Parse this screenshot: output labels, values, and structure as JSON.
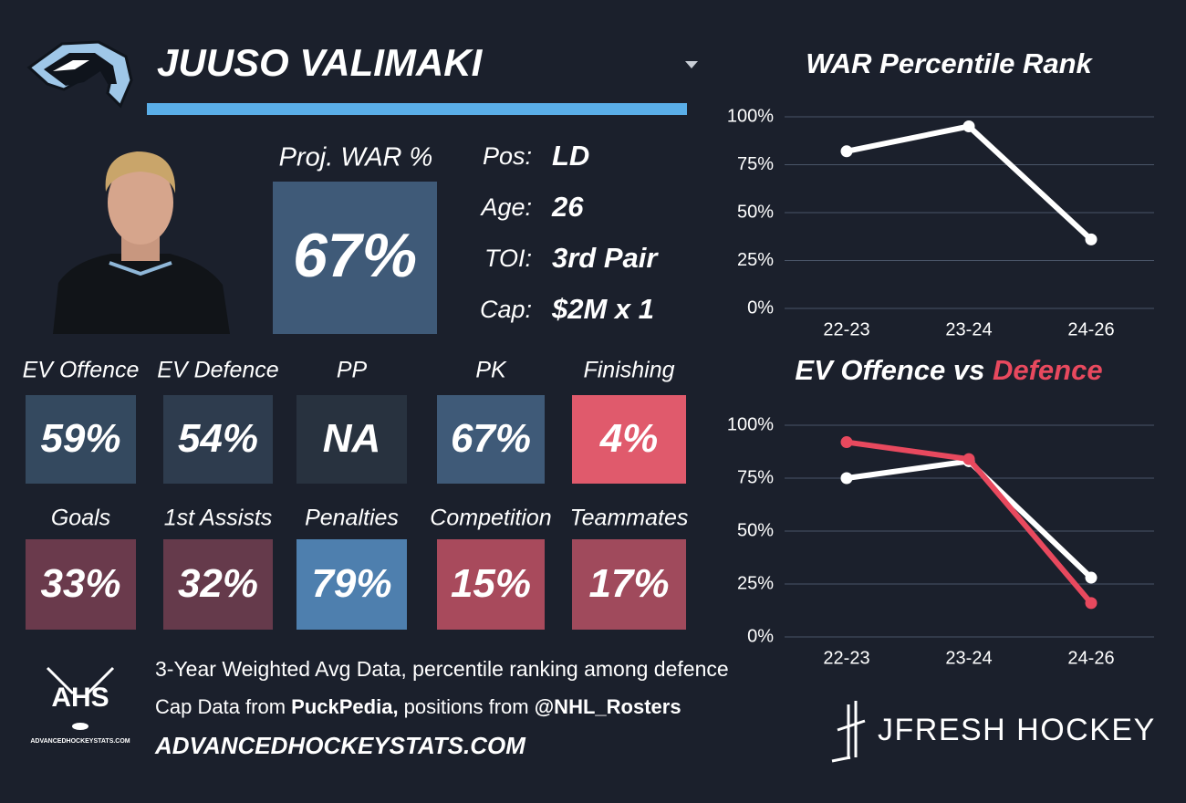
{
  "player": {
    "name": "JUUSO VALIMAKI"
  },
  "proj_war": {
    "label": "Proj. WAR %",
    "value": "67%",
    "color": "#3f5a78"
  },
  "bio": [
    {
      "label": "Pos:",
      "value": "LD"
    },
    {
      "label": "Age:",
      "value": "26"
    },
    {
      "label": "TOI:",
      "value": "3rd Pair"
    },
    {
      "label": "Cap:",
      "value": "$2M x 1"
    }
  ],
  "tiles": [
    [
      {
        "label": "EV Offence",
        "value": "59%",
        "color": "#34495f"
      },
      {
        "label": "EV Defence",
        "value": "54%",
        "color": "#2e3c4e"
      },
      {
        "label": "PP",
        "value": "NA",
        "color": "#28323f"
      },
      {
        "label": "PK",
        "value": "67%",
        "color": "#3f5a78"
      },
      {
        "label": "Finishing",
        "value": "4%",
        "color": "#e05a6c"
      }
    ],
    [
      {
        "label": "Goals",
        "value": "33%",
        "color": "#6a3a4c"
      },
      {
        "label": "1st Assists",
        "value": "32%",
        "color": "#653a4b"
      },
      {
        "label": "Penalties",
        "value": "79%",
        "color": "#4e7fae"
      },
      {
        "label": "Competition",
        "value": "15%",
        "color": "#a84a5c"
      },
      {
        "label": "Teammates",
        "value": "17%",
        "color": "#a04a5c"
      }
    ]
  ],
  "footer": {
    "note": "3-Year Weighted Avg Data, percentile ranking among defence",
    "credits": [
      "Cap Data from ",
      "PuckPedia,",
      " positions from ",
      "@NHL_Rosters"
    ],
    "site": "ADVANCEDHOCKEYSTATS.COM",
    "logo_text": "AHS",
    "logo_site": "ADVANCEDHOCKEYSTATS.COM",
    "brand": "JFRESH HOCKEY"
  },
  "chart_data": [
    {
      "type": "line",
      "title": {
        "text": "WAR Percentile Rank"
      },
      "categories": [
        "22-23",
        "23-24",
        "24-26"
      ],
      "series": [
        {
          "color": "#ffffff",
          "values": [
            82,
            95,
            36
          ]
        }
      ],
      "ylim": [
        0,
        100
      ],
      "yticks": [
        {
          "value": 0,
          "label": "0%"
        },
        {
          "value": 25,
          "label": "25%"
        },
        {
          "value": 50,
          "label": "50%"
        },
        {
          "value": 75,
          "label": "75%"
        },
        {
          "value": 100,
          "label": "100%"
        }
      ],
      "grid": true
    },
    {
      "type": "line",
      "title": {
        "text": "EV Offence vs ",
        "highlight": "Defence"
      },
      "categories": [
        "22-23",
        "23-24",
        "24-26"
      ],
      "series": [
        {
          "color": "#ffffff",
          "values": [
            75,
            83,
            28
          ]
        },
        {
          "color": "#e8495e",
          "values": [
            92,
            84,
            16
          ]
        }
      ],
      "ylim": [
        0,
        100
      ],
      "yticks": [
        {
          "value": 0,
          "label": "0%"
        },
        {
          "value": 25,
          "label": "25%"
        },
        {
          "value": 50,
          "label": "50%"
        },
        {
          "value": 75,
          "label": "75%"
        },
        {
          "value": 100,
          "label": "100%"
        }
      ],
      "grid": true
    }
  ]
}
